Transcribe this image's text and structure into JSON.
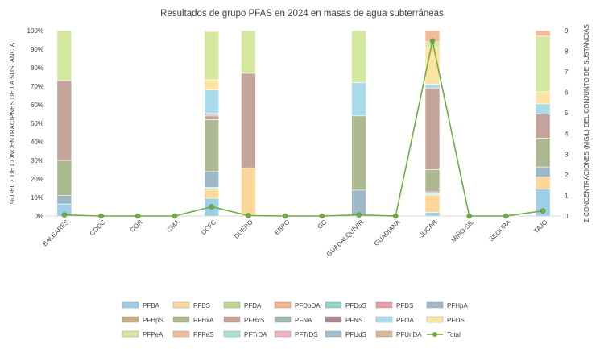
{
  "chart_data": {
    "type": "bar",
    "title": "Resultados de grupo PFAS en 2024 en masas de agua subterráneas",
    "ylabel": "% DEL Σ DE CONCENTRACIPNES DE LA SUSTANCIA",
    "y2label": "Σ CONCENTRACIONES (MG/L) DEL CONJUNTO DE SUSTANCIAS",
    "xlabel": "",
    "ylim": [
      0,
      100
    ],
    "y2lim": [
      0,
      9
    ],
    "yticks": [
      "0%",
      "10%",
      "20%",
      "30%",
      "40%",
      "50%",
      "60%",
      "70%",
      "80%",
      "90%",
      "100%"
    ],
    "y2ticks": [
      "0",
      "1",
      "2",
      "3",
      "4",
      "5",
      "6",
      "7",
      "8",
      "9"
    ],
    "grid": false,
    "legend_position": "bottom",
    "categories": [
      "BALEARES",
      "COOC",
      "COR",
      "CMA",
      "DCFC",
      "DUERO",
      "EBRO",
      "GC",
      "GUADALQUIVIR",
      "GUADIANA",
      "JUCAR",
      "MIÑO-SIL",
      "SEGURA",
      "TAJO"
    ],
    "series": [
      {
        "name": "PFBA",
        "color": "#9dcfe6",
        "values": [
          6.5,
          0,
          0,
          0,
          9.5,
          0,
          0,
          0,
          0,
          0,
          2,
          0,
          0,
          14.5
        ]
      },
      {
        "name": "PFBS",
        "color": "#fcd898",
        "values": [
          0,
          0,
          0,
          0,
          4.5,
          26,
          0,
          0,
          0,
          0,
          9,
          0,
          0,
          6.5
        ]
      },
      {
        "name": "PFDA",
        "color": "#c0d88e",
        "values": [
          0,
          0,
          0,
          0,
          1,
          0,
          0,
          0,
          0,
          0,
          0.5,
          0,
          0,
          0
        ]
      },
      {
        "name": "PFDoDA",
        "color": "#f4b08c",
        "values": [
          0,
          0,
          0,
          0,
          0,
          0,
          0,
          0,
          0,
          0,
          0,
          0,
          0,
          0
        ]
      },
      {
        "name": "PFDoS",
        "color": "#8fd4c8",
        "values": [
          0,
          0,
          0,
          0,
          0.5,
          0,
          0,
          0,
          0,
          0,
          0.5,
          0,
          0,
          0
        ]
      },
      {
        "name": "PFDS",
        "color": "#e89aa5",
        "values": [
          0,
          0,
          0,
          0,
          0,
          0,
          0,
          0,
          0,
          0,
          0,
          0,
          0,
          0
        ]
      },
      {
        "name": "PFHpA",
        "color": "#9fb8c8",
        "values": [
          4.5,
          0,
          0,
          0,
          8.5,
          0,
          0,
          0,
          14,
          0,
          1,
          0,
          0,
          5.5
        ]
      },
      {
        "name": "PFHpS",
        "color": "#c7ad88",
        "values": [
          0,
          0,
          0,
          0,
          0,
          0,
          0,
          0,
          0,
          0,
          1.5,
          0,
          0,
          0
        ]
      },
      {
        "name": "PFHxA",
        "color": "#abb890",
        "values": [
          19,
          0,
          0,
          0,
          28,
          0,
          0,
          0,
          40,
          0,
          10.5,
          0,
          0,
          15.5
        ]
      },
      {
        "name": "PFHxS",
        "color": "#c5a49c",
        "values": [
          43,
          0,
          0,
          0,
          2,
          51,
          0,
          0,
          0,
          0,
          44,
          0,
          0,
          13
        ]
      },
      {
        "name": "PFNA",
        "color": "#9fb5b0",
        "values": [
          0,
          0,
          0,
          0,
          0.5,
          0,
          0,
          0,
          0,
          0,
          0,
          0,
          0,
          0
        ]
      },
      {
        "name": "PFNS",
        "color": "#a7889a",
        "values": [
          0,
          0,
          0,
          0,
          1,
          0,
          0,
          0,
          0,
          0,
          0,
          0,
          0,
          0
        ]
      },
      {
        "name": "PFOA",
        "color": "#a8dceb",
        "values": [
          0,
          0,
          0,
          0,
          12.5,
          0,
          0,
          0,
          18,
          0,
          2,
          0,
          0,
          5.5
        ]
      },
      {
        "name": "PFOS",
        "color": "#fde4a4",
        "values": [
          0,
          0,
          0,
          0,
          5.5,
          0,
          0,
          0,
          0,
          0,
          20,
          0,
          0,
          6.5
        ]
      },
      {
        "name": "PFPeA",
        "color": "#d4e8a0",
        "values": [
          27,
          0,
          0,
          0,
          26,
          23,
          0,
          0,
          28,
          0,
          3,
          0,
          0,
          30
        ]
      },
      {
        "name": "PFPeS",
        "color": "#f2bc98",
        "values": [
          0,
          0,
          0,
          0,
          0.5,
          0,
          0,
          0,
          0,
          0,
          6,
          0,
          0,
          3
        ]
      },
      {
        "name": "PFTrDA",
        "color": "#a6e4d6",
        "values": [
          0,
          0,
          0,
          0,
          0,
          0,
          0,
          0,
          0,
          0,
          0,
          0,
          0,
          0
        ]
      },
      {
        "name": "PFTrDS",
        "color": "#f0b4bc",
        "values": [
          0,
          0,
          0,
          0,
          0,
          0,
          0,
          0,
          0,
          0,
          0,
          0,
          0,
          0
        ]
      },
      {
        "name": "PFUdS",
        "color": "#a3c0d0",
        "values": [
          0,
          0,
          0,
          0,
          0,
          0,
          0,
          0,
          0,
          0,
          0,
          0,
          0,
          0
        ]
      },
      {
        "name": "PFUnDA",
        "color": "#d6ba94",
        "values": [
          0,
          0,
          0,
          0,
          0,
          0,
          0,
          0,
          0,
          0,
          0,
          0,
          0,
          0
        ]
      }
    ],
    "line": {
      "name": "Total",
      "axis": "right",
      "color": "#70ad47",
      "values": [
        0.05,
        0,
        0,
        0,
        0.45,
        0.02,
        0,
        0,
        0.05,
        0,
        8.5,
        0,
        0,
        0.25
      ]
    }
  }
}
